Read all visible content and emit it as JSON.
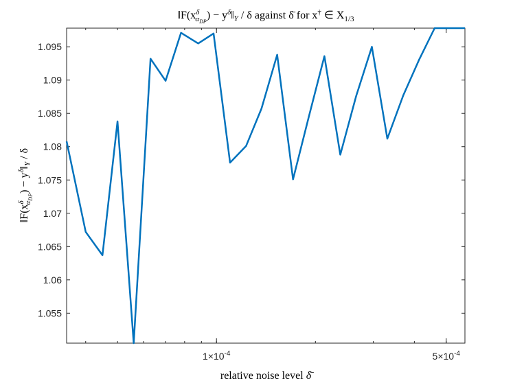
{
  "chart_data": {
    "type": "line",
    "title": "‖F(x^δ_{α_DP}) − y^δ‖_Y / δ against δ̄ for x† ∈ X_{1/3}",
    "xlabel": "relative noise level δ̄",
    "ylabel": "‖F(x^δ_{α_DP}) − y^δ‖_Y / δ",
    "x_scale": "log",
    "xlim": [
      3.5e-05,
      0.00057
    ],
    "ylim": [
      1.0505,
      1.0978
    ],
    "grid": false,
    "x_major_ticks": [
      {
        "value": 0.0001,
        "label": "1×10^-4"
      },
      {
        "value": 0.0005,
        "label": "5×10^-4"
      }
    ],
    "y_ticks": [
      1.055,
      1.06,
      1.065,
      1.07,
      1.075,
      1.08,
      1.085,
      1.09,
      1.095
    ],
    "y_tick_labels": [
      "1.055",
      "1.06",
      "1.065",
      "1.07",
      "1.075",
      "1.08",
      "1.085",
      "1.09",
      "1.095"
    ],
    "series": [
      {
        "color": "#0072BD",
        "x": [
          3.5e-05,
          4e-05,
          4.5e-05,
          5e-05,
          5.6e-05,
          6.3e-05,
          7e-05,
          7.8e-05,
          8.8e-05,
          9.8e-05,
          0.00011,
          0.000123,
          0.000137,
          0.000153,
          0.000171,
          0.000191,
          0.000213,
          0.000238,
          0.000266,
          0.000297,
          0.000331,
          0.00037,
          0.000413,
          0.000461,
          0.000515,
          0.00057
        ],
        "y": [
          1.0808,
          1.0672,
          1.0637,
          1.0838,
          1.0505,
          1.0932,
          1.0899,
          1.0971,
          1.0955,
          1.097,
          1.0776,
          1.0801,
          1.0857,
          1.0938,
          1.0751,
          1.0845,
          1.0936,
          1.0788,
          1.0876,
          1.095,
          1.0812,
          1.0877,
          1.093,
          1.0978,
          1.0978,
          1.0978
        ]
      }
    ]
  }
}
